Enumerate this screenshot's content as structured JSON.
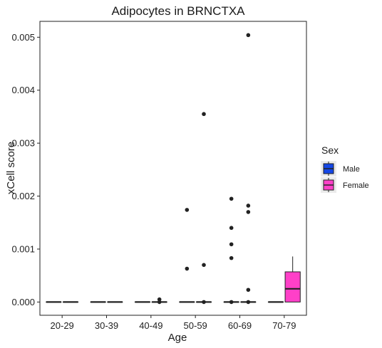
{
  "chart_data": {
    "type": "box",
    "title": "Adipocytes in BRNCTXA",
    "xlabel": "Age",
    "ylabel": "xCell score",
    "categories": [
      "20-29",
      "30-39",
      "40-49",
      "50-59",
      "60-69",
      "70-79"
    ],
    "ylim": [
      -0.00025,
      0.0053
    ],
    "yticks": [
      0.0,
      0.001,
      0.002,
      0.003,
      0.004,
      0.005
    ],
    "ytick_labels": [
      "0.000",
      "0.001",
      "0.002",
      "0.003",
      "0.004",
      "0.005"
    ],
    "grid": false,
    "legend": {
      "title": "Sex",
      "placement": "right",
      "entries": [
        "Male",
        "Female"
      ]
    },
    "series": [
      {
        "name": "Male",
        "color": "#1447e6",
        "boxes": [
          {
            "category": "20-29",
            "q1": 0,
            "median": 0,
            "q3": 0,
            "whisker_low": 0,
            "whisker_high": 0,
            "outliers": []
          },
          {
            "category": "30-39",
            "q1": 0,
            "median": 0,
            "q3": 0,
            "whisker_low": 0,
            "whisker_high": 0,
            "outliers": []
          },
          {
            "category": "40-49",
            "q1": 0,
            "median": 0,
            "q3": 0,
            "whisker_low": 0,
            "whisker_high": 0,
            "outliers": []
          },
          {
            "category": "50-59",
            "q1": 0,
            "median": 0,
            "q3": 0,
            "whisker_low": 0,
            "whisker_high": 0,
            "outliers": [
              0.00174,
              0.00063
            ]
          },
          {
            "category": "60-69",
            "q1": 0,
            "median": 0,
            "q3": 0,
            "whisker_low": 0,
            "whisker_high": 0,
            "outliers": [
              0.00195,
              0.0014,
              0.00109,
              0.00083,
              0.0
            ]
          },
          {
            "category": "70-79",
            "q1": 0,
            "median": 0,
            "q3": 0,
            "whisker_low": 0,
            "whisker_high": 0,
            "outliers": []
          }
        ]
      },
      {
        "name": "Female",
        "color": "#ff40c8",
        "boxes": [
          {
            "category": "20-29",
            "q1": 0,
            "median": 0,
            "q3": 0,
            "whisker_low": 0,
            "whisker_high": 0,
            "outliers": []
          },
          {
            "category": "30-39",
            "q1": 0,
            "median": 0,
            "q3": 0,
            "whisker_low": 0,
            "whisker_high": 0,
            "outliers": []
          },
          {
            "category": "40-49",
            "q1": 0,
            "median": 0,
            "q3": 0,
            "whisker_low": 0,
            "whisker_high": 0,
            "outliers": [
              5e-05,
              0.0
            ]
          },
          {
            "category": "50-59",
            "q1": 0,
            "median": 0,
            "q3": 0,
            "whisker_low": 0,
            "whisker_high": 0,
            "outliers": [
              0.00355,
              0.0007,
              0.0
            ]
          },
          {
            "category": "60-69",
            "q1": 0,
            "median": 0,
            "q3": 0,
            "whisker_low": 0,
            "whisker_high": 0,
            "outliers": [
              0.00504,
              0.00182,
              0.0017,
              0.00023,
              0.0
            ]
          },
          {
            "category": "70-79",
            "q1": 0,
            "median": 0.00025,
            "q3": 0.00057,
            "whisker_low": 0,
            "whisker_high": 0.00086,
            "outliers": []
          }
        ]
      }
    ]
  }
}
